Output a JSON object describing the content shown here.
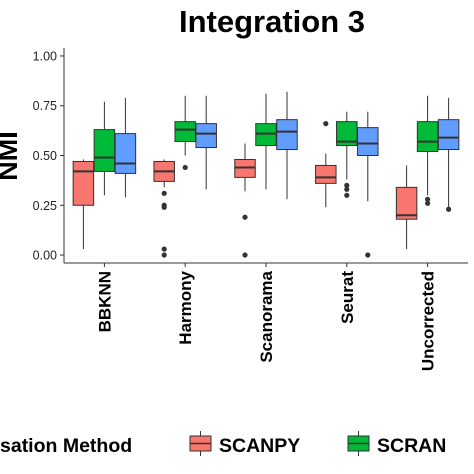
{
  "chart_data": {
    "type": "box",
    "title": "Integration 3",
    "ylabel": "NMI",
    "xlabel": "",
    "ylim": [
      -0.04,
      1.04
    ],
    "yticks": [
      "0.00",
      "0.25",
      "0.50",
      "0.75",
      "1.00"
    ],
    "yticks_values": [
      0,
      0.25,
      0.5,
      0.75,
      1.0
    ],
    "categories": [
      "BBKNN",
      "Harmony",
      "Scanorama",
      "Seurat",
      "Uncorrected"
    ],
    "grid": false,
    "legend": {
      "position": "bottom",
      "title": "sation Method",
      "items": [
        "SCANPY",
        "SCRAN",
        ""
      ]
    },
    "series": [
      {
        "name": "SCANPY",
        "color": "#F8766D",
        "boxes": [
          {
            "min": 0.03,
            "q1": 0.25,
            "median": 0.42,
            "q3": 0.47,
            "max": 0.48,
            "outliers": []
          },
          {
            "min": 0.34,
            "q1": 0.37,
            "median": 0.42,
            "q3": 0.47,
            "max": 0.48,
            "outliers": [
              0.31,
              0.25,
              0.24,
              0.03,
              0.0
            ]
          },
          {
            "min": 0.32,
            "q1": 0.39,
            "median": 0.44,
            "q3": 0.48,
            "max": 0.56,
            "outliers": [
              0.19,
              0.0
            ]
          },
          {
            "min": 0.24,
            "q1": 0.36,
            "median": 0.39,
            "q3": 0.45,
            "max": 0.51,
            "outliers": [
              0.66
            ]
          },
          {
            "min": 0.03,
            "q1": 0.18,
            "median": 0.2,
            "q3": 0.34,
            "max": 0.45,
            "outliers": []
          }
        ]
      },
      {
        "name": "SCRAN",
        "color": "#00BA38",
        "boxes": [
          {
            "min": 0.3,
            "q1": 0.42,
            "median": 0.49,
            "q3": 0.63,
            "max": 0.77,
            "outliers": []
          },
          {
            "min": 0.5,
            "q1": 0.57,
            "median": 0.63,
            "q3": 0.67,
            "max": 0.8,
            "outliers": [
              0.44
            ]
          },
          {
            "min": 0.33,
            "q1": 0.55,
            "median": 0.61,
            "q3": 0.66,
            "max": 0.81,
            "outliers": []
          },
          {
            "min": 0.38,
            "q1": 0.55,
            "median": 0.57,
            "q3": 0.67,
            "max": 0.72,
            "outliers": [
              0.35,
              0.33,
              0.3
            ]
          },
          {
            "min": 0.3,
            "q1": 0.52,
            "median": 0.57,
            "q3": 0.67,
            "max": 0.8,
            "outliers": [
              0.28,
              0.26
            ]
          }
        ]
      },
      {
        "name": "",
        "color": "#619CFF",
        "boxes": [
          {
            "min": 0.29,
            "q1": 0.41,
            "median": 0.46,
            "q3": 0.61,
            "max": 0.79,
            "outliers": []
          },
          {
            "min": 0.33,
            "q1": 0.54,
            "median": 0.61,
            "q3": 0.66,
            "max": 0.8,
            "outliers": []
          },
          {
            "min": 0.28,
            "q1": 0.53,
            "median": 0.62,
            "q3": 0.68,
            "max": 0.82,
            "outliers": []
          },
          {
            "min": 0.27,
            "q1": 0.5,
            "median": 0.56,
            "q3": 0.64,
            "max": 0.72,
            "outliers": [
              0.0
            ]
          },
          {
            "min": 0.23,
            "q1": 0.53,
            "median": 0.59,
            "q3": 0.68,
            "max": 0.79,
            "outliers": [
              0.23
            ]
          }
        ]
      }
    ]
  }
}
